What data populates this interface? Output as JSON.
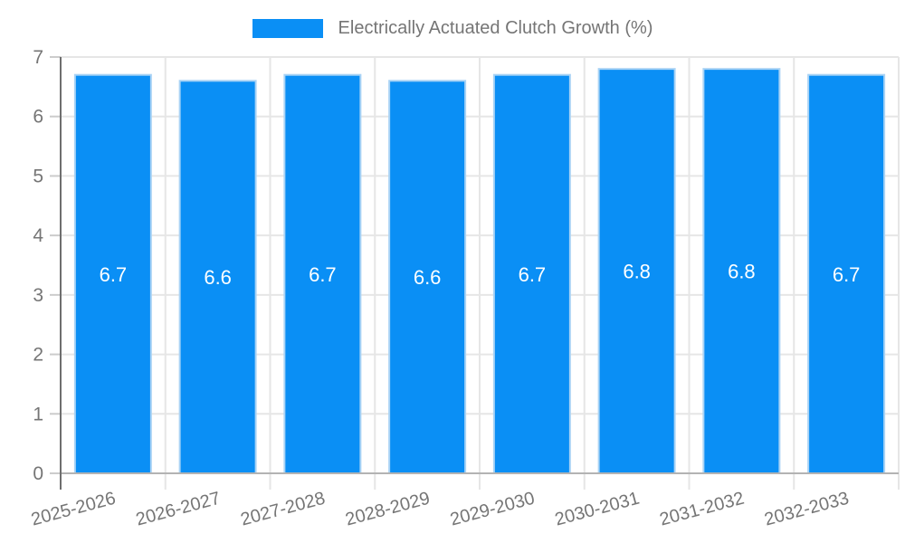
{
  "chart_data": {
    "type": "bar",
    "title": "Electrically Actuated Clutch Growth (%)",
    "categories": [
      "2025-2026",
      "2026-2027",
      "2027-2028",
      "2028-2029",
      "2029-2030",
      "2030-2031",
      "2031-2032",
      "2032-2033"
    ],
    "values": [
      6.7,
      6.6,
      6.7,
      6.6,
      6.7,
      6.8,
      6.8,
      6.7
    ],
    "value_format_decimals": 1,
    "xlabel": "",
    "ylabel": "",
    "ylim": [
      0,
      7
    ],
    "ytick_step": 1,
    "yticks": [
      0,
      1,
      2,
      3,
      4,
      5,
      6,
      7
    ],
    "grid": true,
    "legend_position": "top",
    "x_label_rotation_deg": -15,
    "colors": {
      "bar": "#0a8ff5",
      "bar_border": "#a9d3f5",
      "bar_label": "#ffffff",
      "grid": "#e6e6e6",
      "axis_line": "#6e6e6e",
      "baseline": "#b3b3b3",
      "tick": "#cccccc",
      "axis_label": "#757575",
      "background": "#ffffff"
    }
  }
}
